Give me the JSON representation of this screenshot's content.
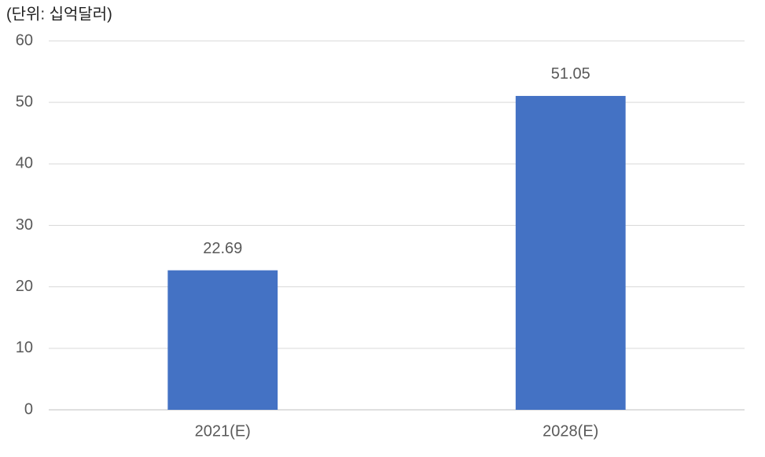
{
  "chart_data": {
    "type": "bar",
    "subtitle": "(단위: 십억달러)",
    "categories": [
      "2021(E)",
      "2028(E)"
    ],
    "values": [
      22.69,
      51.05
    ],
    "color": "#4472c4",
    "ylim": [
      0,
      60
    ],
    "yticks": [
      0,
      10,
      20,
      30,
      40,
      50,
      60
    ],
    "grid": true,
    "data_labels": true
  }
}
